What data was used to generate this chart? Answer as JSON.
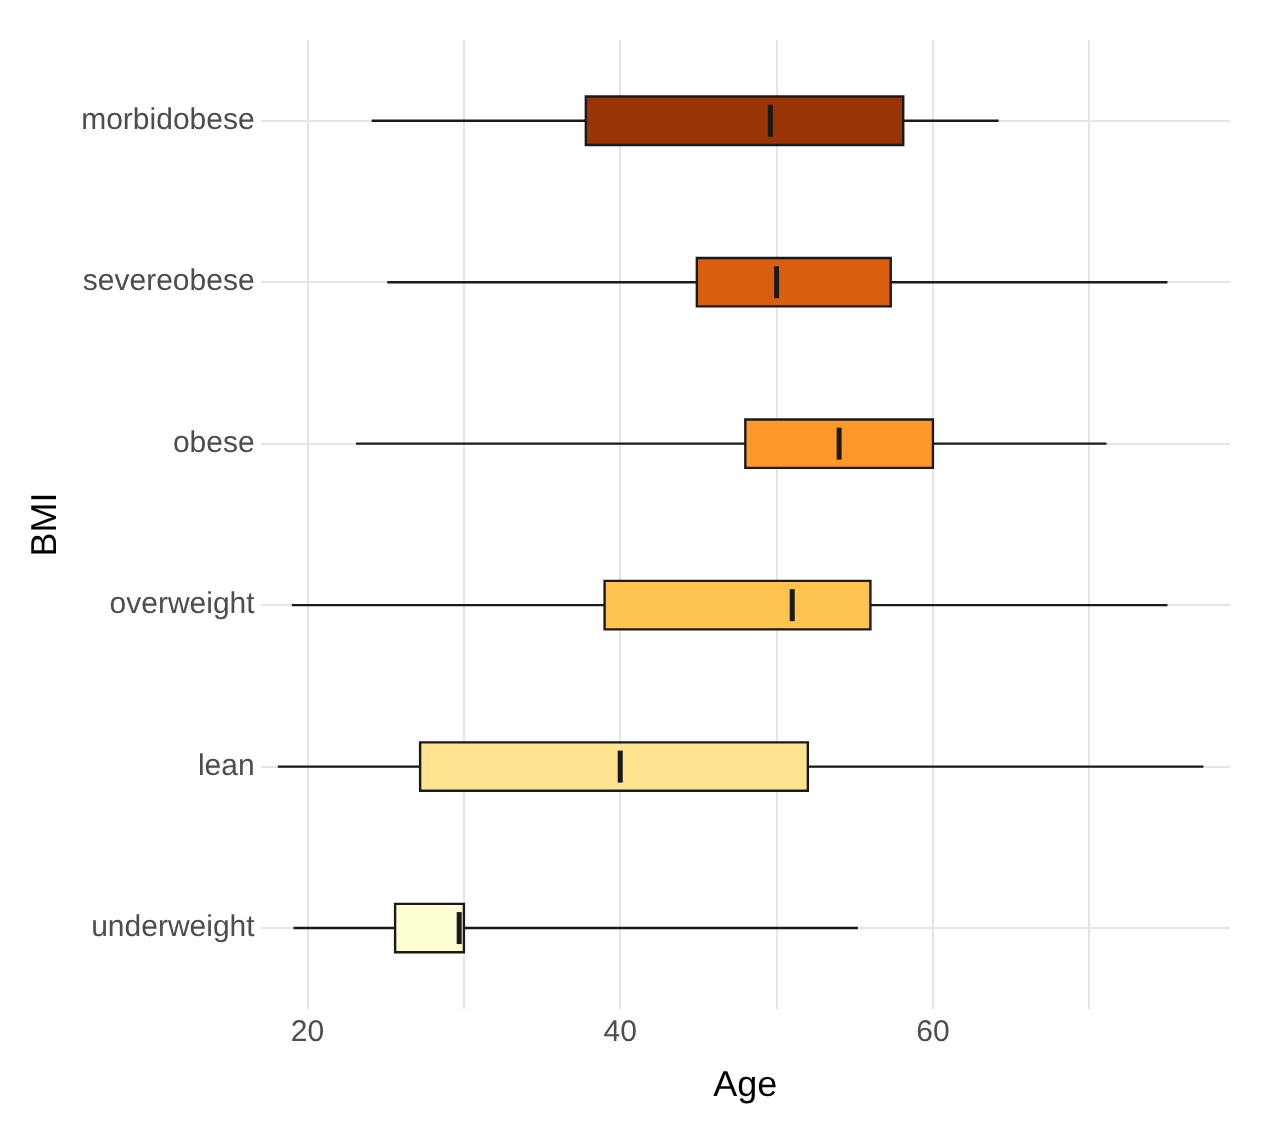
{
  "chart_data": {
    "type": "box",
    "orientation": "horizontal",
    "xlabel": "Age",
    "ylabel": "BMI",
    "categories": [
      "morbidobese",
      "severeobese",
      "obese",
      "overweight",
      "lean",
      "underweight"
    ],
    "colors": [
      "#993404",
      "#d95f0e",
      "#fe9929",
      "#fec44f",
      "#fee391",
      "#ffffd4"
    ],
    "boxes": [
      {
        "low": 24.1,
        "q1": 37.8,
        "median": 49.6,
        "q3": 58.1,
        "high": 64.2
      },
      {
        "low": 25.1,
        "q1": 44.9,
        "median": 50,
        "q3": 57.3,
        "high": 75
      },
      {
        "low": 23.1,
        "q1": 48,
        "median": 54,
        "q3": 60,
        "high": 71.1
      },
      {
        "low": 19,
        "q1": 39,
        "median": 51,
        "q3": 56,
        "high": 75
      },
      {
        "low": 18.1,
        "q1": 27.2,
        "median": 40,
        "q3": 52,
        "high": 77.3
      },
      {
        "low": 19.1,
        "q1": 25.6,
        "median": 29.7,
        "q3": 30,
        "high": 55.2
      }
    ],
    "xlim": [
      17,
      79
    ],
    "xticks": [
      20,
      {
        "value": 30,
        "label": null
      },
      40,
      {
        "value": 50,
        "label": null
      },
      60,
      {
        "value": 70,
        "label": null
      }
    ],
    "grid": true,
    "legend": false
  }
}
